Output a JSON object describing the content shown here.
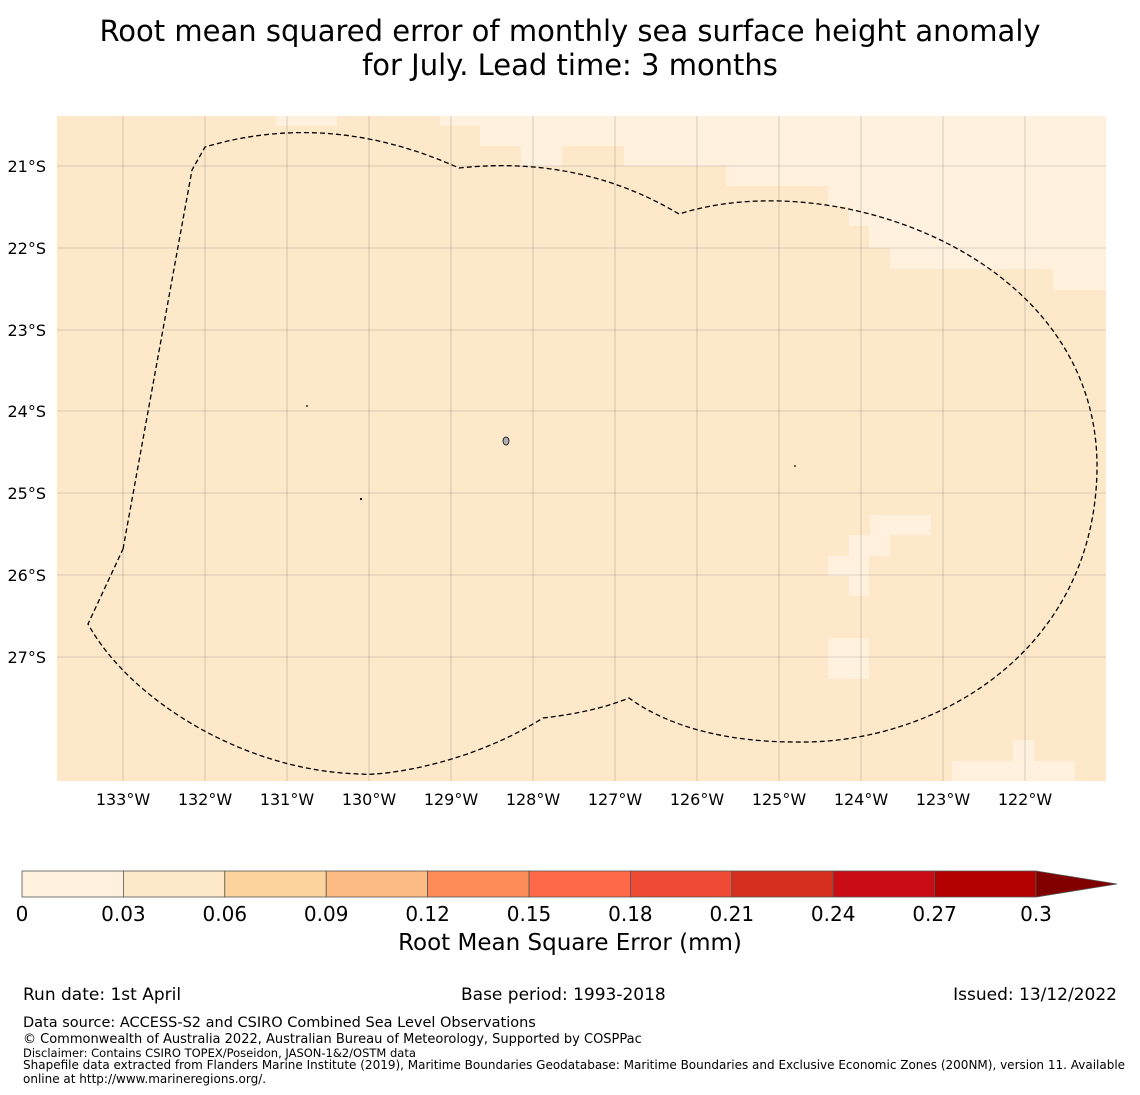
{
  "title": {
    "line1": "Root mean squared error of monthly sea surface height anomaly",
    "line2": "for July. Lead time: 3 months"
  },
  "map": {
    "lat_labels": [
      "21°S",
      "22°S",
      "23°S",
      "24°S",
      "25°S",
      "26°S",
      "27°S"
    ],
    "lon_labels": [
      "133°W",
      "132°W",
      "131°W",
      "130°W",
      "129°W",
      "128°W",
      "127°W",
      "126°W",
      "125°W",
      "124°W",
      "123°W",
      "122°W"
    ],
    "base_fill_color": "#fee8ca",
    "light_fill_color": "#fff1de",
    "boundary_style": "dashed black line (EEZ boundary)"
  },
  "colorbar": {
    "ticks": [
      "0",
      "0.03",
      "0.06",
      "0.09",
      "0.12",
      "0.15",
      "0.18",
      "0.21",
      "0.24",
      "0.27",
      "0.3"
    ],
    "colors": [
      "#fff1de",
      "#fee8ca",
      "#fdd49e",
      "#fdbb84",
      "#fc8d59",
      "#fe6a49",
      "#ef4a33",
      "#d72f1f",
      "#c90d14",
      "#b30000",
      "#800000"
    ],
    "extend": "max",
    "label": "Root Mean Square Error (mm)"
  },
  "footer": {
    "run_date": "Run date: 1st April",
    "base_period": "Base period: 1993-2018",
    "issued": "Issued: 13/12/2022",
    "data_source": "Data source: ACCESS-S2 and CSIRO Combined Sea Level Observations",
    "copyright": "© Commonwealth of Australia 2022, Australian Bureau of Meteorology, Supported by COSPPac",
    "disclaimer": "Disclaimer: Contains CSIRO TOPEX/Poseidon, JASON-1&2/OSTM data",
    "shapefile": "Shapefile data extracted from Flanders Marine Institute (2019), Maritime Boundaries Geodatabase: Maritime Boundaries and Exclusive Economic Zones (200NM), version 11. Available online at http://www.marineregions.org/."
  }
}
